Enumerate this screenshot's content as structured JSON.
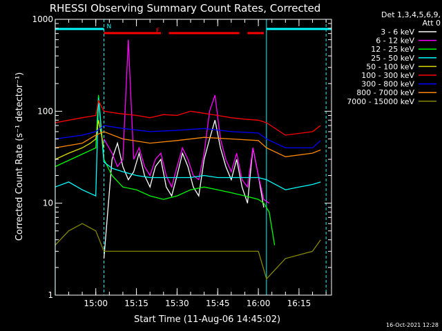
{
  "chart_data": {
    "type": "line",
    "title": "RHESSI Observing Summary Count Rates, Corrected",
    "xlabel": "Start Time (11-Aug-06 14:45:02)",
    "ylabel": "Corrected Count Rate (s⁻¹ detector⁻¹)",
    "yscale": "log",
    "ylim": [
      1,
      1000
    ],
    "xlim": [
      "14:45:02",
      "16:27:00"
    ],
    "yticks": [
      "1",
      "10",
      "100",
      "1000"
    ],
    "xticks": [
      "15:00",
      "15:15",
      "15:30",
      "15:45",
      "16:00",
      "16:15"
    ],
    "legend_header": [
      "Det 1,3,4,5,6,9,",
      "Att 0"
    ],
    "legend_position": "right",
    "timestamp": "16-Oct-2021 12:28",
    "flags": [
      {
        "label": "N",
        "color": "#00ffff",
        "segments": [
          [
            "14:45",
            "15:03"
          ],
          [
            "16:03",
            "16:27"
          ]
        ]
      },
      {
        "label": "F",
        "color": "#ff0000",
        "segments": [
          [
            "15:03",
            "15:24"
          ],
          [
            "15:27",
            "15:53"
          ],
          [
            "15:56",
            "16:02"
          ]
        ]
      }
    ],
    "vlines": [
      {
        "x": "14:45",
        "color": "#00ffff",
        "style": "solid"
      },
      {
        "x": "15:03",
        "color": "#00ffff",
        "style": "dashed"
      },
      {
        "x": "16:03",
        "color": "#00ffff",
        "style": "solid"
      },
      {
        "x": "16:25",
        "color": "#00ffff",
        "style": "dashed"
      }
    ],
    "series": [
      {
        "name": "3 - 6 keV",
        "color": "#ffffff",
        "x": [
          "15:03",
          "15:06",
          "15:08",
          "15:10",
          "15:12",
          "15:14",
          "15:16",
          "15:18",
          "15:20",
          "15:22",
          "15:24",
          "15:26",
          "15:28",
          "15:30",
          "15:32",
          "15:34",
          "15:36",
          "15:38",
          "15:40",
          "15:42",
          "15:44",
          "15:46",
          "15:48",
          "15:50",
          "15:52",
          "15:54",
          "15:56",
          "15:58",
          "16:00",
          "16:02"
        ],
        "values": [
          2.5,
          30,
          45,
          25,
          18,
          22,
          35,
          20,
          15,
          25,
          30,
          15,
          12,
          20,
          35,
          25,
          15,
          12,
          30,
          50,
          80,
          40,
          25,
          18,
          30,
          15,
          10,
          40,
          20,
          9
        ]
      },
      {
        "name": "6 - 12 keV",
        "color": "#ff00ff",
        "x": [
          "15:03",
          "15:06",
          "15:08",
          "15:10",
          "15:12",
          "15:14",
          "15:16",
          "15:18",
          "15:20",
          "15:22",
          "15:24",
          "15:26",
          "15:28",
          "15:30",
          "15:32",
          "15:34",
          "15:36",
          "15:38",
          "15:40",
          "15:42",
          "15:44",
          "15:46",
          "15:48",
          "15:50",
          "15:52",
          "15:54",
          "15:56",
          "15:58",
          "16:00",
          "16:02",
          "16:04"
        ],
        "values": [
          50,
          35,
          25,
          30,
          600,
          30,
          40,
          25,
          20,
          30,
          35,
          20,
          15,
          25,
          40,
          30,
          20,
          18,
          35,
          100,
          150,
          50,
          30,
          22,
          35,
          18,
          15,
          40,
          20,
          11,
          10
        ]
      },
      {
        "name": "12 - 25 keV",
        "color": "#00ff00",
        "x": [
          "14:45",
          "15:00",
          "15:01",
          "15:03",
          "15:06",
          "15:10",
          "15:15",
          "15:20",
          "15:25",
          "15:30",
          "15:35",
          "15:40",
          "15:45",
          "15:50",
          "15:55",
          "16:00",
          "16:02",
          "16:04",
          "16:06"
        ],
        "values": [
          25,
          40,
          150,
          30,
          20,
          15,
          14,
          12,
          11,
          12,
          14,
          15,
          14,
          13,
          12,
          11,
          10,
          8,
          3.5
        ]
      },
      {
        "name": "25 - 50 keV",
        "color": "#00ffff",
        "x": [
          "14:45",
          "14:50",
          "14:55",
          "15:00",
          "15:01",
          "15:03",
          "15:06",
          "15:10",
          "15:15",
          "15:20",
          "15:25",
          "15:30",
          "15:35",
          "15:40",
          "15:45",
          "15:50",
          "15:55",
          "16:00",
          "16:03",
          "16:10",
          "16:15",
          "16:20",
          "16:23"
        ],
        "values": [
          15,
          17,
          14,
          12,
          140,
          28,
          24,
          22,
          20,
          19,
          19,
          19,
          19,
          20,
          19,
          19,
          19,
          19,
          18,
          14,
          15,
          16,
          17
        ]
      },
      {
        "name": "50 - 100 keV",
        "color": "#dddd00",
        "x": [
          "14:45",
          "14:50",
          "14:55",
          "14:58",
          "15:00",
          "15:01",
          "15:03"
        ],
        "values": [
          30,
          35,
          40,
          45,
          50,
          80,
          40
        ]
      },
      {
        "name": "100 - 300 keV",
        "color": "#ff0000",
        "x": [
          "14:45",
          "14:50",
          "14:55",
          "15:00",
          "15:01",
          "15:03",
          "15:08",
          "15:15",
          "15:20",
          "15:25",
          "15:30",
          "15:35",
          "15:40",
          "15:45",
          "15:50",
          "15:55",
          "16:00",
          "16:03",
          "16:10",
          "16:20",
          "16:23"
        ],
        "values": [
          75,
          80,
          85,
          90,
          130,
          100,
          95,
          90,
          85,
          92,
          90,
          100,
          95,
          90,
          85,
          82,
          80,
          75,
          55,
          60,
          70
        ]
      },
      {
        "name": "300 - 800 keV",
        "color": "#0000ff",
        "x": [
          "14:45",
          "14:55",
          "15:00",
          "15:03",
          "15:10",
          "15:20",
          "15:30",
          "15:40",
          "15:50",
          "16:00",
          "16:03",
          "16:10",
          "16:20",
          "16:23"
        ],
        "values": [
          50,
          55,
          60,
          70,
          65,
          60,
          62,
          65,
          60,
          58,
          50,
          40,
          40,
          48
        ]
      },
      {
        "name": "800 - 7000 keV",
        "color": "#ff8800",
        "x": [
          "14:45",
          "14:55",
          "15:00",
          "15:03",
          "15:10",
          "15:20",
          "15:30",
          "15:40",
          "15:50",
          "16:00",
          "16:03",
          "16:10",
          "16:20",
          "16:23"
        ],
        "values": [
          40,
          45,
          55,
          60,
          50,
          45,
          48,
          52,
          50,
          48,
          40,
          32,
          35,
          38
        ]
      },
      {
        "name": "7000 - 15000 keV",
        "color": "#888800",
        "x": [
          "14:45",
          "14:50",
          "14:55",
          "15:00",
          "15:03",
          "15:10",
          "15:20",
          "15:30",
          "15:40",
          "15:50",
          "16:00",
          "16:03",
          "16:10",
          "16:20",
          "16:23"
        ],
        "values": [
          3.5,
          5,
          6,
          5,
          3,
          3,
          3,
          3,
          3,
          3,
          3,
          1.5,
          2.5,
          3,
          4
        ]
      }
    ]
  }
}
